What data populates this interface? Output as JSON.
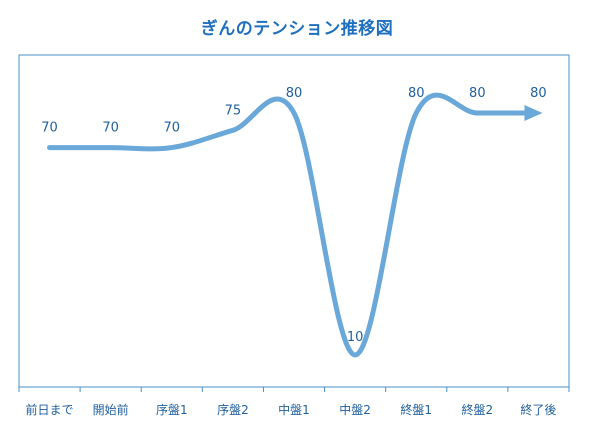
{
  "chart_data": {
    "type": "line",
    "title": "ぎんのテンション推移図",
    "xlabel": "",
    "ylabel": "",
    "categories": [
      "前日まで",
      "開始前",
      "序盤1",
      "序盤2",
      "中盤1",
      "中盤2",
      "終盤1",
      "終盤2",
      "終了後"
    ],
    "series": [
      {
        "values": [
          70,
          70,
          70,
          75,
          80,
          10,
          80,
          80,
          80
        ]
      }
    ],
    "ylim": [
      0,
      100
    ],
    "grid": false,
    "legend": "none",
    "smooth": true,
    "arrow_end": true,
    "data_labels": true,
    "colors": {
      "line": "#6aa8d9",
      "axis": "#4a90c8",
      "text": "#1f5f9f",
      "title": "#1f6fbf"
    }
  }
}
